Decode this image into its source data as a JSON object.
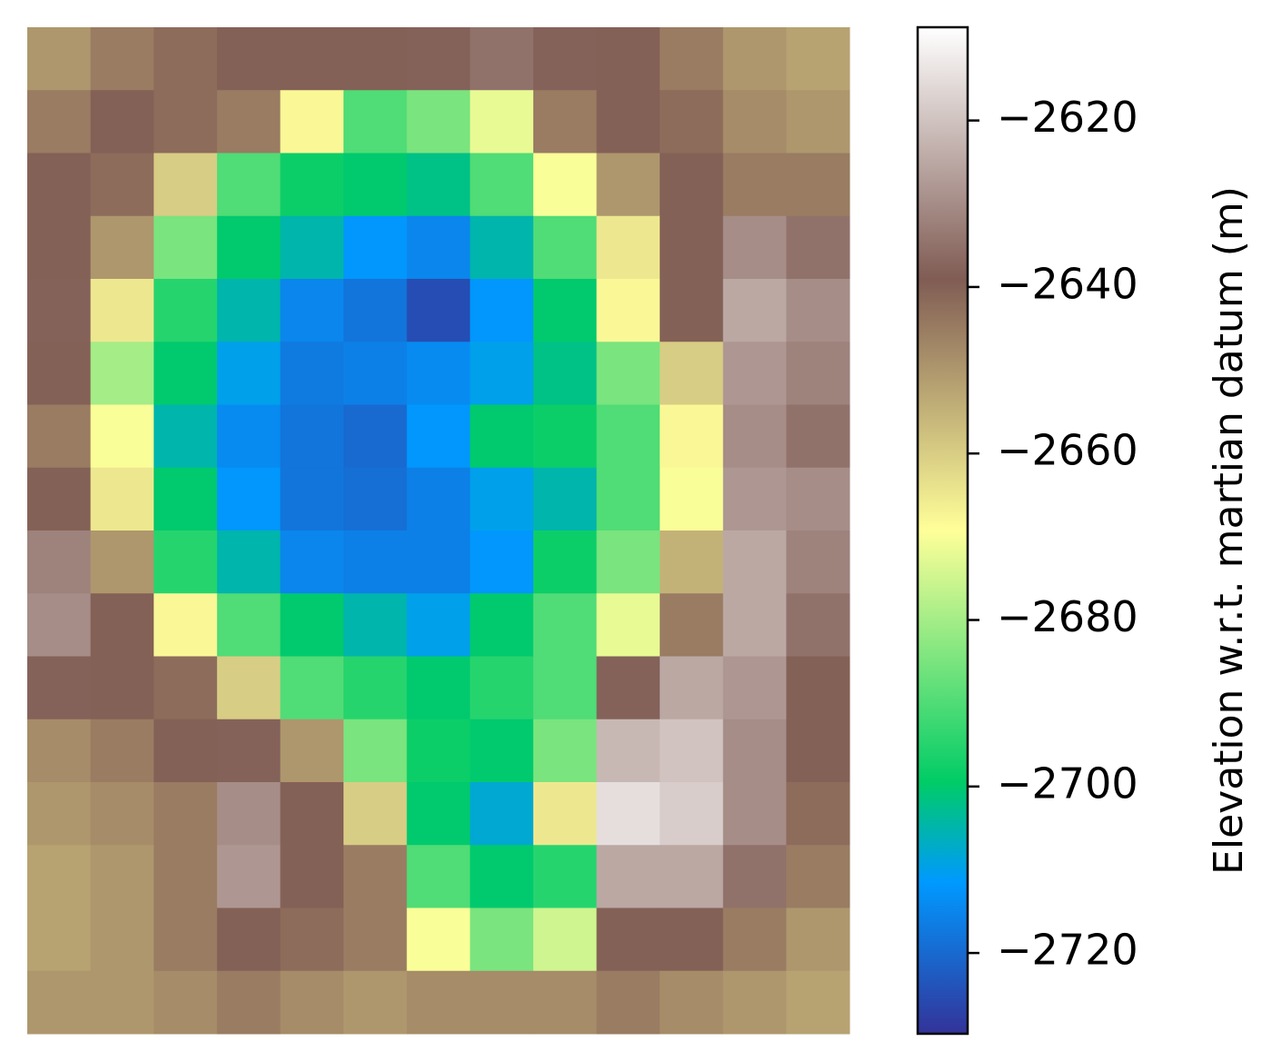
{
  "chart_data": {
    "type": "heatmap",
    "colormap": "terrain",
    "colorbar_label": "Elevation w.r.t. martian datum (m)",
    "clim": [
      -2729.7,
      -2608.8
    ],
    "ticks": [
      {
        "value": -2620,
        "label": "−2620"
      },
      {
        "value": -2640,
        "label": "−2640"
      },
      {
        "value": -2660,
        "label": "−2660"
      },
      {
        "value": -2680,
        "label": "−2680"
      },
      {
        "value": -2700,
        "label": "−2700"
      },
      {
        "value": -2720,
        "label": "−2720"
      }
    ],
    "z": [
      [
        -2650,
        -2645,
        -2642,
        -2640,
        -2640,
        -2640,
        -2638,
        -2635,
        -2638,
        -2640,
        -2645,
        -2650,
        -2652
      ],
      [
        -2645,
        -2640,
        -2642,
        -2645,
        -2668,
        -2690,
        -2685,
        -2672,
        -2645,
        -2640,
        -2642,
        -2648,
        -2650
      ],
      [
        -2640,
        -2642,
        -2660,
        -2690,
        -2698,
        -2700,
        -2702,
        -2690,
        -2670,
        -2650,
        -2640,
        -2645,
        -2645
      ],
      [
        -2640,
        -2650,
        -2685,
        -2700,
        -2705,
        -2712,
        -2715,
        -2705,
        -2690,
        -2665,
        -2640,
        -2630,
        -2635
      ],
      [
        -2638,
        -2665,
        -2695,
        -2705,
        -2715,
        -2718,
        -2725,
        -2712,
        -2700,
        -2668,
        -2640,
        -2625,
        -2630
      ],
      [
        -2640,
        -2680,
        -2700,
        -2710,
        -2717,
        -2716,
        -2714,
        -2710,
        -2702,
        -2685,
        -2660,
        -2628,
        -2632
      ],
      [
        -2645,
        -2670,
        -2705,
        -2714,
        -2718,
        -2720,
        -2712,
        -2700,
        -2698,
        -2690,
        -2668,
        -2630,
        -2635
      ],
      [
        -2640,
        -2665,
        -2700,
        -2712,
        -2718,
        -2719,
        -2716,
        -2710,
        -2705,
        -2690,
        -2670,
        -2628,
        -2630
      ],
      [
        -2632,
        -2650,
        -2695,
        -2705,
        -2715,
        -2716,
        -2716,
        -2712,
        -2698,
        -2685,
        -2655,
        -2625,
        -2632
      ],
      [
        -2630,
        -2640,
        -2668,
        -2690,
        -2700,
        -2705,
        -2710,
        -2700,
        -2690,
        -2672,
        -2645,
        -2625,
        -2635
      ],
      [
        -2638,
        -2640,
        -2642,
        -2660,
        -2690,
        -2695,
        -2700,
        -2695,
        -2690,
        -2638,
        -2625,
        -2628,
        -2640
      ],
      [
        -2648,
        -2645,
        -2640,
        -2638,
        -2650,
        -2685,
        -2698,
        -2700,
        -2685,
        -2622,
        -2620,
        -2630,
        -2640
      ],
      [
        -2650,
        -2648,
        -2645,
        -2630,
        -2640,
        -2660,
        -2700,
        -2708,
        -2665,
        -2615,
        -2618,
        -2630,
        -2642
      ],
      [
        -2652,
        -2650,
        -2645,
        -2628,
        -2640,
        -2645,
        -2690,
        -2700,
        -2695,
        -2625,
        -2625,
        -2635,
        -2645
      ],
      [
        -2652,
        -2650,
        -2645,
        -2640,
        -2642,
        -2645,
        -2670,
        -2685,
        -2675,
        -2640,
        -2640,
        -2645,
        -2650
      ],
      [
        -2650,
        -2650,
        -2648,
        -2645,
        -2648,
        -2650,
        -2648,
        -2648,
        -2648,
        -2645,
        -2648,
        -2650,
        -2652
      ]
    ]
  }
}
